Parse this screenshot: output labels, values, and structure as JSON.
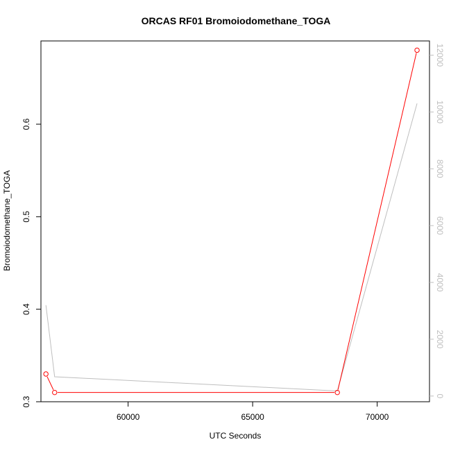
{
  "chart_data": {
    "type": "line",
    "title": "ORCAS RF01 Bromoiodomethane_TOGA",
    "xlabel": "UTC Seconds",
    "ylabel": "Bromoiodomethane_TOGA",
    "xlim": [
      56500,
      72100
    ],
    "ylim": [
      0.3,
      0.69
    ],
    "y2lim": [
      -200,
      12500
    ],
    "x_ticks": [
      60000,
      65000,
      70000
    ],
    "x_tick_labels": [
      "60000",
      "65000",
      "70000"
    ],
    "y_ticks": [
      0.3,
      0.4,
      0.5,
      0.6
    ],
    "y_tick_labels": [
      "0.3",
      "0.4",
      "0.5",
      "0.6"
    ],
    "y2_ticks": [
      0,
      2000,
      4000,
      6000,
      8000,
      10000,
      12000
    ],
    "y2_tick_labels": [
      "0",
      "2000",
      "4000",
      "6000",
      "8000",
      "10000",
      "12000"
    ],
    "grid": false,
    "series": [
      {
        "axis": "left",
        "color": "#ff0000",
        "markers": "open-circle",
        "x": [
          56700,
          57050,
          68400,
          71600
        ],
        "y": [
          0.33,
          0.31,
          0.31,
          0.68
        ]
      },
      {
        "axis": "right",
        "color": "#bebebe",
        "markers": "none",
        "x": [
          56700,
          57050,
          68400,
          71600
        ],
        "y": [
          3200,
          680,
          180,
          10300
        ]
      }
    ]
  }
}
